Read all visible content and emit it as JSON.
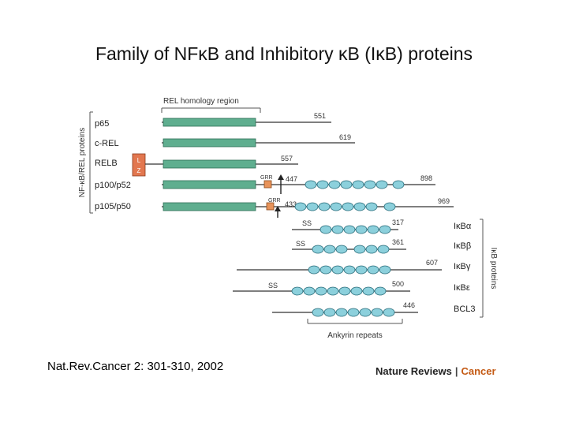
{
  "title": "Family of NFκB and Inhibitory κB (IκB) proteins",
  "citation": "Nat.Rev.Cancer 2: 301-310, 2002",
  "brand": {
    "left": "Nature Reviews",
    "sep": "|",
    "right": "Cancer"
  },
  "diagram": {
    "rel_region_label": "REL homology region",
    "nfkb_group_label": "NF-κB/REL proteins",
    "ikb_group_label": "IκB proteins",
    "ankyrin_label": "Ankyrin repeats",
    "lz_label": [
      "L",
      "Z"
    ],
    "nfkb_proteins": [
      {
        "name": "p65",
        "length": "551"
      },
      {
        "name": "c-REL",
        "length": "619"
      },
      {
        "name": "RELB",
        "length": "557"
      },
      {
        "name": "p100/p52",
        "length": "898",
        "grr": "GRR",
        "cleavage": "447"
      },
      {
        "name": "p105/p50",
        "length": "969",
        "grr": "GRR",
        "cleavage": "433"
      }
    ],
    "ikb_proteins": [
      {
        "name": "IκBα",
        "length": "317",
        "ss": "SS"
      },
      {
        "name": "IκBβ",
        "length": "361",
        "ss": "SS"
      },
      {
        "name": "IκBγ",
        "length": "607"
      },
      {
        "name": "IκBε",
        "length": "500",
        "ss": "SS"
      },
      {
        "name": "BCL3",
        "length": "446"
      }
    ],
    "colors": {
      "rel_bar": "#5fae8f",
      "ankyrin": "#8cd0dc",
      "lz_box": "#e2774f",
      "grr_box": "#e8935a"
    }
  }
}
